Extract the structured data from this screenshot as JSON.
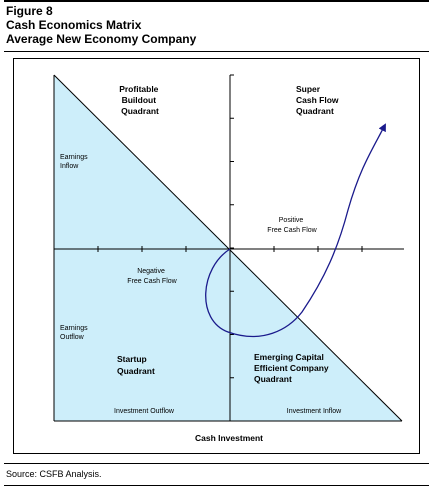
{
  "header": {
    "figure_label": "Figure 8",
    "title_line1": "Cash Economics Matrix",
    "title_line2": "Average New Economy Company"
  },
  "diagram": {
    "quadrants": {
      "top_left": [
        "Profitable",
        "Buildout",
        "Quadrant"
      ],
      "top_right": [
        "Super",
        "Cash Flow",
        "Quadrant"
      ],
      "bottom_left": [
        "Startup",
        "Quadrant"
      ],
      "bottom_right": [
        "Emerging Capital",
        "Efficient Company",
        "Quadrant"
      ]
    },
    "labels": {
      "earnings_inflow": [
        "Earnings",
        "Inflow"
      ],
      "earnings_outflow": [
        "Earnings",
        "Outflow"
      ],
      "positive_fcf": [
        "Positive",
        "Free Cash Flow"
      ],
      "negative_fcf": [
        "Negative",
        "Free Cash Flow"
      ],
      "investment_outflow": "Investment Outflow",
      "investment_inflow": "Investment Inflow"
    },
    "x_axis_title": "Cash Investment",
    "colors": {
      "fill": "#cdeefa",
      "line": "#000000",
      "curve": "#1a1a8c"
    }
  },
  "footer": {
    "source": "Source: CSFB Analysis."
  }
}
